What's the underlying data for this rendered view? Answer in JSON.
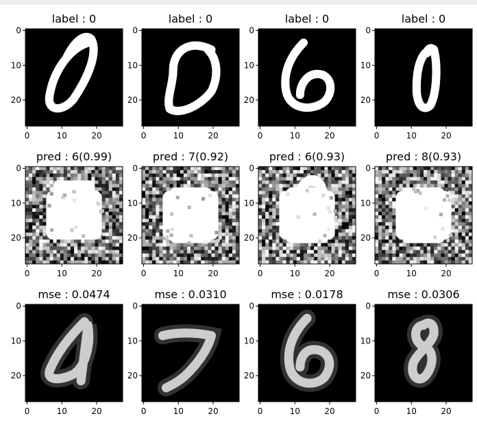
{
  "chart_data": {
    "type": "heatmap",
    "description_rows": [
      "input digits",
      "adversarial perturbations",
      "reconstructions"
    ],
    "xticks": [
      "0",
      "10",
      "20"
    ],
    "yticks": [
      "0",
      "10",
      "20"
    ],
    "axis_range": [
      0,
      27
    ],
    "panels": [
      [
        {
          "title": "label : 0",
          "shape": "zero-slanted"
        },
        {
          "title": "label : 0",
          "shape": "zero-broken"
        },
        {
          "title": "label : 0",
          "shape": "six"
        },
        {
          "title": "label : 0",
          "shape": "zero-narrow"
        }
      ],
      [
        {
          "title": "pred : 6(0.99)",
          "label": "6",
          "confidence": 0.99,
          "shape": "noise-blob"
        },
        {
          "title": "pred : 7(0.92)",
          "label": "7",
          "confidence": 0.92,
          "shape": "noise-blob"
        },
        {
          "title": "pred : 6(0.93)",
          "label": "6",
          "confidence": 0.93,
          "shape": "noise-blob-hook"
        },
        {
          "title": "pred : 8(0.93)",
          "label": "8",
          "confidence": 0.93,
          "shape": "noise-blob"
        }
      ],
      [
        {
          "title": "mse : 0.0474",
          "mse": 0.0474,
          "shape": "four-like"
        },
        {
          "title": "mse : 0.0310",
          "mse": 0.031,
          "shape": "seven"
        },
        {
          "title": "mse : 0.0178",
          "mse": 0.0178,
          "shape": "six-recon"
        },
        {
          "title": "mse : 0.0306",
          "mse": 0.0306,
          "shape": "eight"
        }
      ]
    ],
    "colormap": "gray"
  }
}
